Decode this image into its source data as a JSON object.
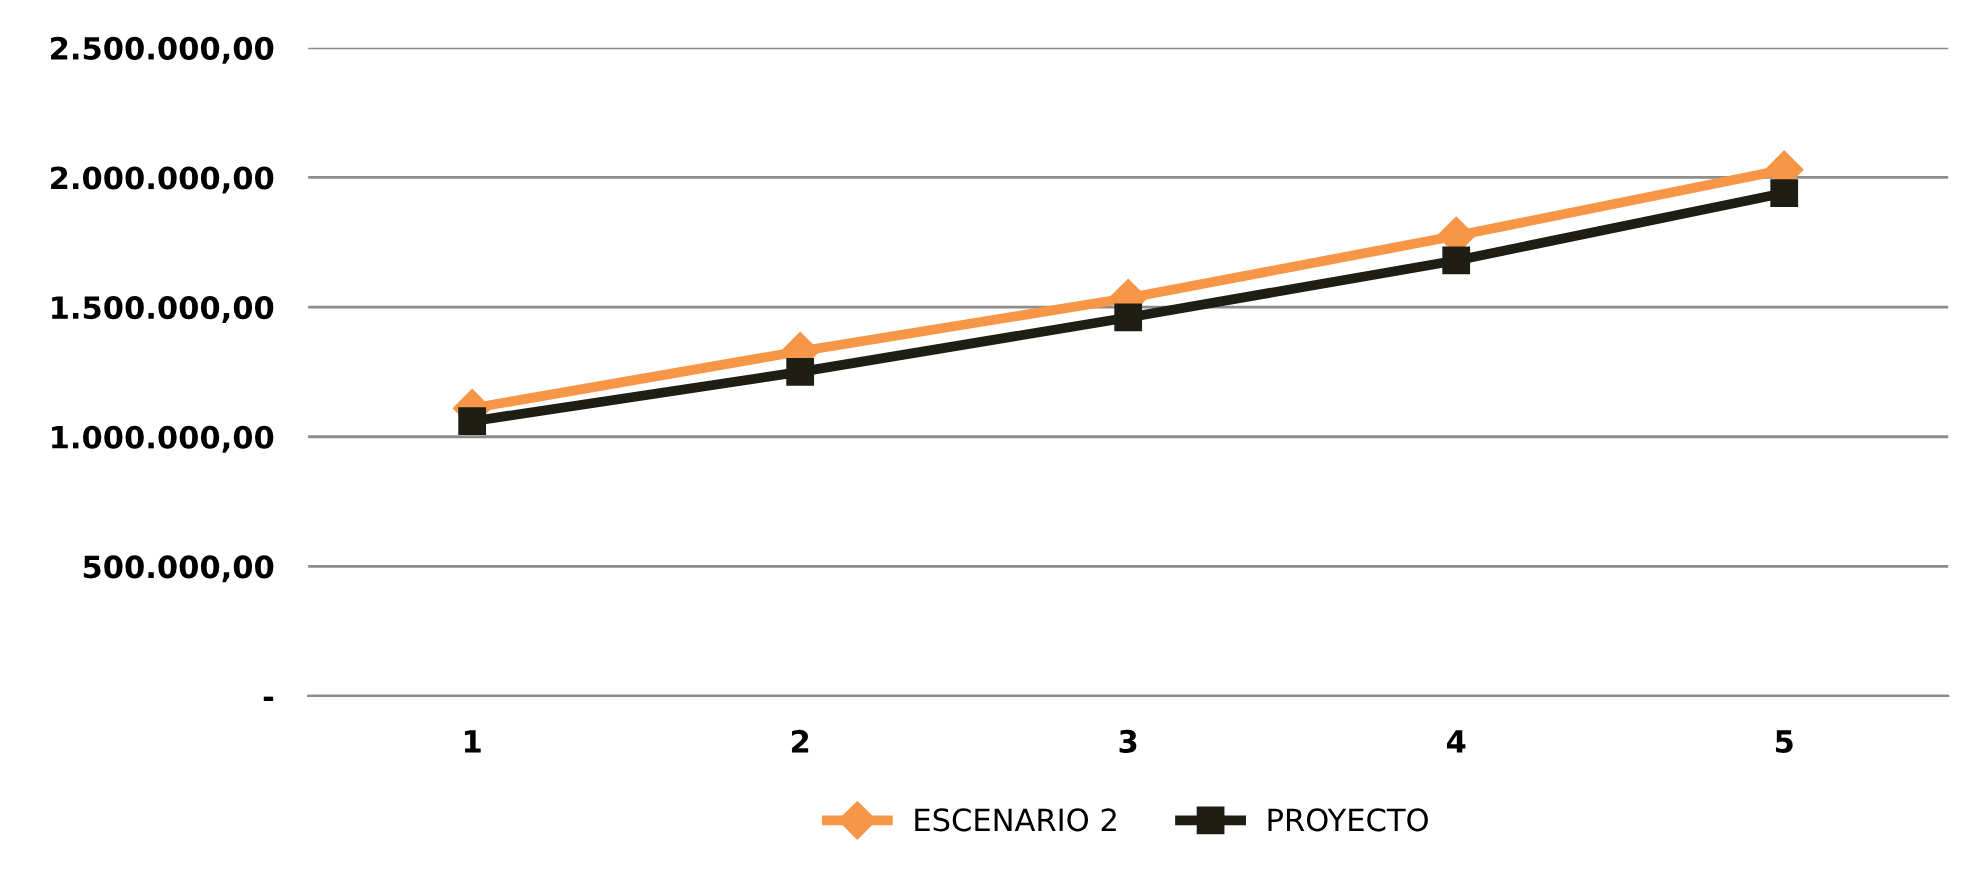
{
  "chart_data": {
    "type": "line",
    "categories": [
      "1",
      "2",
      "3",
      "4",
      "5"
    ],
    "series": [
      {
        "name": "ESCENARIO 2",
        "color": "#f79646",
        "marker": "diamond",
        "values": [
          1110000,
          1330000,
          1535000,
          1775000,
          2030000
        ]
      },
      {
        "name": "PROYECTO",
        "color": "#1e1e14",
        "marker": "square",
        "values": [
          1060000,
          1250000,
          1460000,
          1680000,
          1940000
        ]
      }
    ],
    "ylim": [
      0,
      2500000
    ],
    "yticks": [
      {
        "value": 0,
        "label": "-"
      },
      {
        "value": 500000,
        "label": "500.000,00"
      },
      {
        "value": 1000000,
        "label": "1.000.000,00"
      },
      {
        "value": 1500000,
        "label": "1.500.000,00"
      },
      {
        "value": 2000000,
        "label": "2.000.000,00"
      },
      {
        "value": 2500000,
        "label": "2.500.000,00"
      }
    ],
    "grid": "y",
    "legend": "bottom",
    "line_style": "solid"
  }
}
